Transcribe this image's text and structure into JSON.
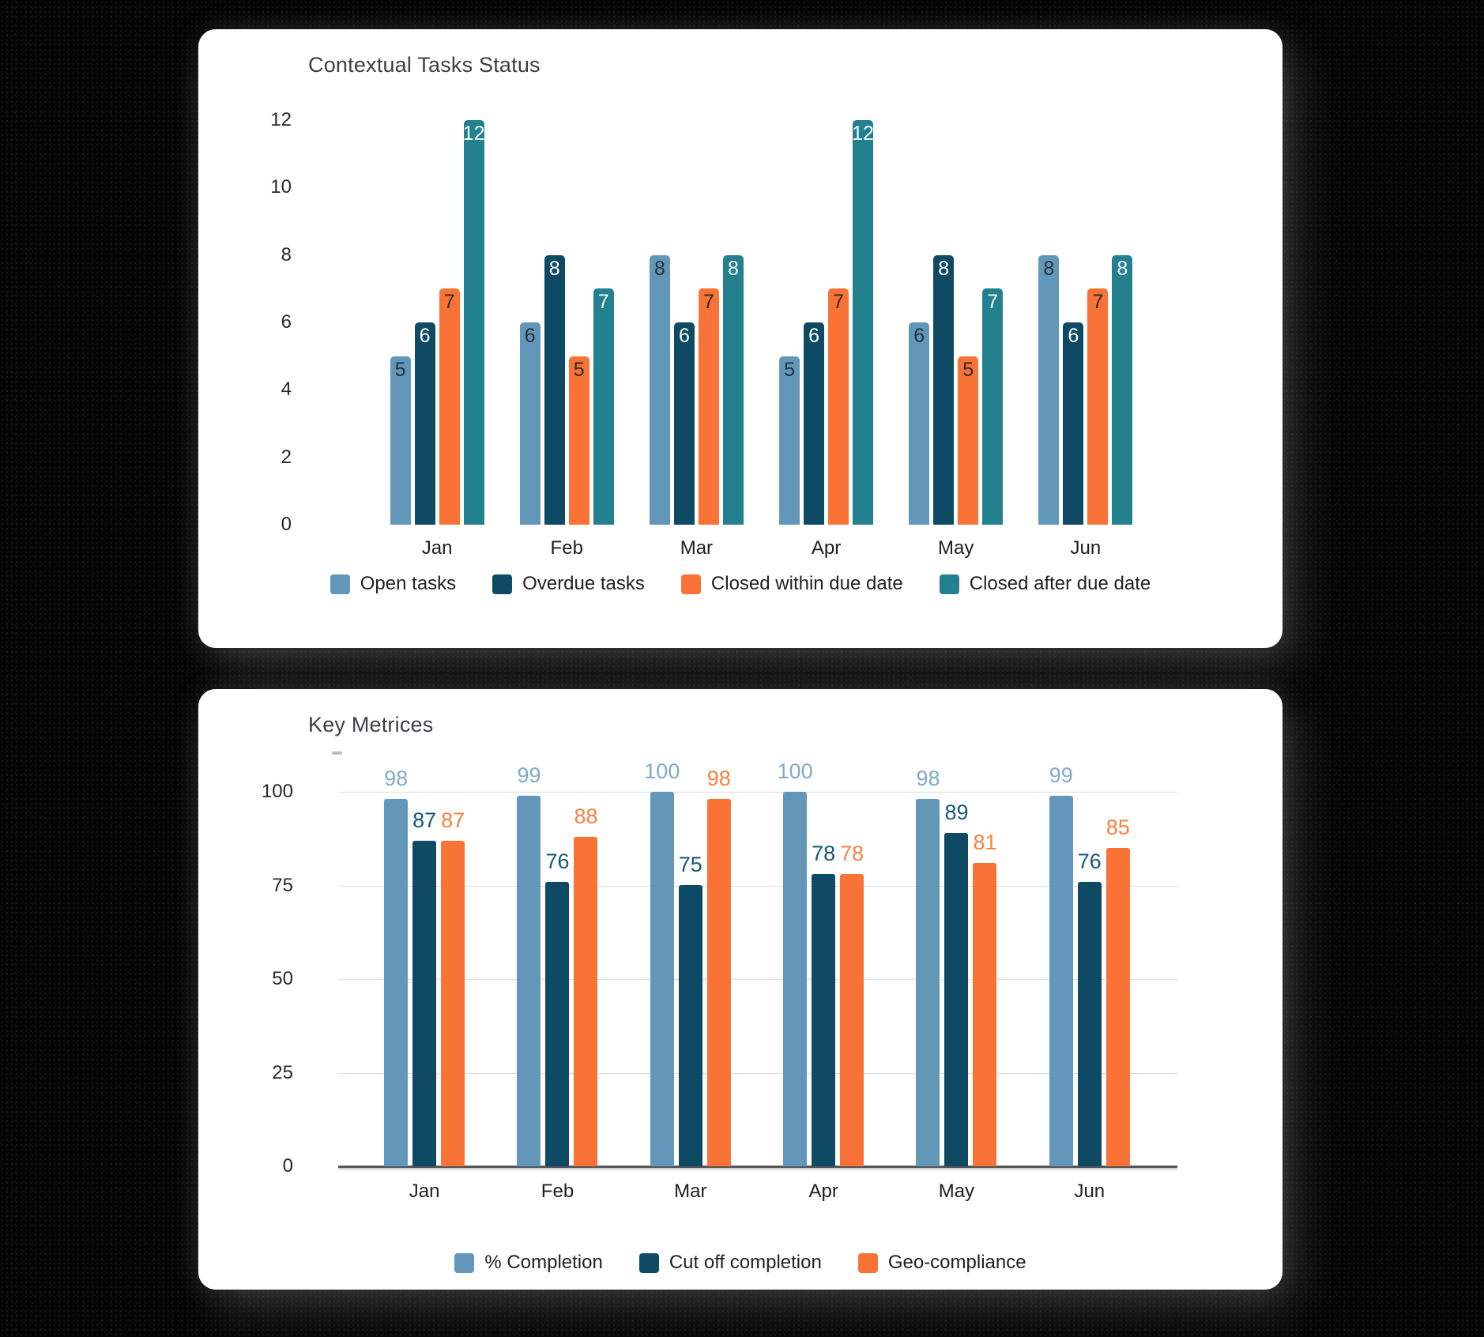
{
  "page": {
    "background_color": "#050505",
    "card_color": "#ffffff"
  },
  "chart_data": [
    {
      "type": "bar",
      "title": "Contextual Tasks Status",
      "categories": [
        "Jan",
        "Feb",
        "Mar",
        "Apr",
        "May",
        "Jun"
      ],
      "series": [
        {
          "name": "Open tasks",
          "color": "#6397BA",
          "label_color": "#24313B",
          "values": [
            5,
            6,
            8,
            5,
            6,
            8
          ]
        },
        {
          "name": "Overdue tasks",
          "color": "#0E4A64",
          "label_color": "#FFFFFF",
          "values": [
            6,
            8,
            6,
            6,
            8,
            6
          ]
        },
        {
          "name": "Closed within due date",
          "color": "#F97336",
          "label_color": "#2E2A26",
          "values": [
            7,
            5,
            7,
            7,
            5,
            7
          ]
        },
        {
          "name": "Closed after due date",
          "color": "#23808F",
          "label_color": "#F2FAFB",
          "values": [
            12,
            7,
            8,
            12,
            7,
            8
          ]
        }
      ],
      "ylim": [
        0,
        12
      ],
      "yticks": [
        0,
        2,
        4,
        6,
        8,
        10,
        12
      ],
      "grid": false,
      "value_label_position": "inside-top",
      "legend_position": "bottom",
      "xlabel": "",
      "ylabel": ""
    },
    {
      "type": "bar",
      "title": "Key Metrices",
      "categories": [
        "Jan",
        "Feb",
        "Mar",
        "Apr",
        "May",
        "Jun"
      ],
      "series": [
        {
          "name": "% Completion",
          "color": "#6397BA",
          "label_color": "#82A9C7",
          "values": [
            98,
            99,
            100,
            100,
            98,
            99
          ]
        },
        {
          "name": "Cut off completion",
          "color": "#0E4A64",
          "label_color": "#175877",
          "values": [
            87,
            76,
            75,
            78,
            89,
            76
          ]
        },
        {
          "name": "Geo-compliance",
          "color": "#F97336",
          "label_color": "#F9813D",
          "values": [
            87,
            88,
            98,
            78,
            81,
            85
          ]
        }
      ],
      "ylim": [
        0,
        100
      ],
      "yticks": [
        0,
        25,
        50,
        75,
        100
      ],
      "grid": true,
      "grid_color": "#d9dce0",
      "axis_color": "#56585a",
      "value_label_position": "above",
      "legend_position": "bottom",
      "xlabel": "",
      "ylabel": ""
    }
  ]
}
